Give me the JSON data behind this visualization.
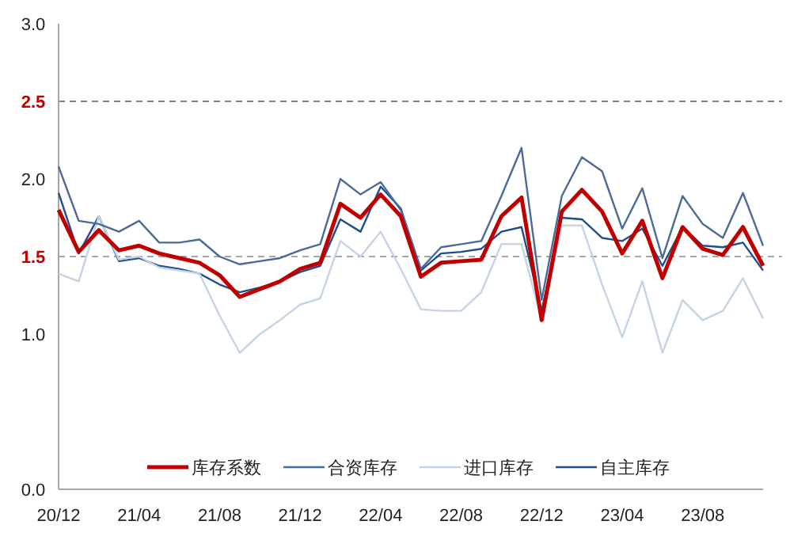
{
  "chart_data": {
    "type": "line",
    "categories": [
      "20/12",
      null,
      null,
      null,
      "21/04",
      null,
      null,
      null,
      "21/08",
      null,
      null,
      null,
      "21/12",
      null,
      null,
      null,
      "22/04",
      null,
      null,
      null,
      "22/08",
      null,
      null,
      null,
      "22/12",
      null,
      null,
      null,
      "23/04",
      null,
      null,
      null,
      "23/08",
      null,
      null,
      null
    ],
    "series": [
      {
        "name": "库存系数",
        "color": "#c00000",
        "values": [
          1.8,
          1.53,
          1.67,
          1.54,
          1.57,
          1.52,
          1.49,
          1.46,
          1.38,
          1.24,
          1.29,
          1.34,
          1.42,
          1.46,
          1.84,
          1.75,
          1.9,
          1.76,
          1.37,
          1.46,
          1.47,
          1.48,
          1.76,
          1.88,
          1.09,
          1.79,
          1.93,
          1.79,
          1.52,
          1.73,
          1.36,
          1.69,
          1.55,
          1.51,
          1.69,
          1.44
        ]
      },
      {
        "name": "合资库存",
        "color": "#4a6a9a",
        "values": [
          2.08,
          1.73,
          1.71,
          1.66,
          1.73,
          1.59,
          1.59,
          1.61,
          1.5,
          1.45,
          1.47,
          1.49,
          1.54,
          1.58,
          2.0,
          1.9,
          1.98,
          1.8,
          1.42,
          1.56,
          1.58,
          1.6,
          1.89,
          2.2,
          1.22,
          1.89,
          2.14,
          2.05,
          1.68,
          1.94,
          1.49,
          1.89,
          1.71,
          1.62,
          1.91,
          1.57
        ]
      },
      {
        "name": "进口库存",
        "color": "#c5d3e6",
        "values": [
          1.39,
          1.34,
          1.76,
          1.48,
          1.5,
          1.43,
          1.41,
          1.39,
          1.12,
          0.88,
          1.0,
          1.09,
          1.19,
          1.23,
          1.6,
          1.5,
          1.66,
          1.42,
          1.16,
          1.15,
          1.15,
          1.27,
          1.58,
          1.58,
          1.09,
          1.7,
          1.7,
          1.32,
          0.98,
          1.34,
          0.88,
          1.22,
          1.09,
          1.15,
          1.36,
          1.1
        ]
      },
      {
        "name": "自主库存",
        "color": "#1f4e8c",
        "values": [
          1.91,
          1.52,
          1.76,
          1.47,
          1.49,
          1.44,
          1.42,
          1.39,
          1.32,
          1.27,
          1.3,
          1.34,
          1.4,
          1.44,
          1.74,
          1.66,
          1.95,
          1.81,
          1.41,
          1.52,
          1.53,
          1.55,
          1.66,
          1.69,
          1.15,
          1.75,
          1.74,
          1.62,
          1.6,
          1.68,
          1.44,
          1.69,
          1.57,
          1.56,
          1.59,
          1.41
        ]
      }
    ],
    "ylim": [
      0,
      3
    ],
    "yticks": [
      {
        "value": 0,
        "label": "0.0"
      },
      {
        "value": 1,
        "label": "1.0"
      },
      {
        "value": 1.5,
        "label": "1.5"
      },
      {
        "value": 2,
        "label": "2.0"
      },
      {
        "value": 2.5,
        "label": "2.5"
      },
      {
        "value": 3,
        "label": "3.0"
      }
    ],
    "ref_lines": [
      {
        "axis": "y",
        "value": 1.5,
        "color": "#a6a6a6",
        "line_style": "dashed"
      },
      {
        "axis": "y",
        "value": 2.5,
        "color": "#808080",
        "line_style": "dashed"
      }
    ],
    "legend": "bottom",
    "grid": false,
    "marker": "none",
    "line_style": "solid"
  }
}
